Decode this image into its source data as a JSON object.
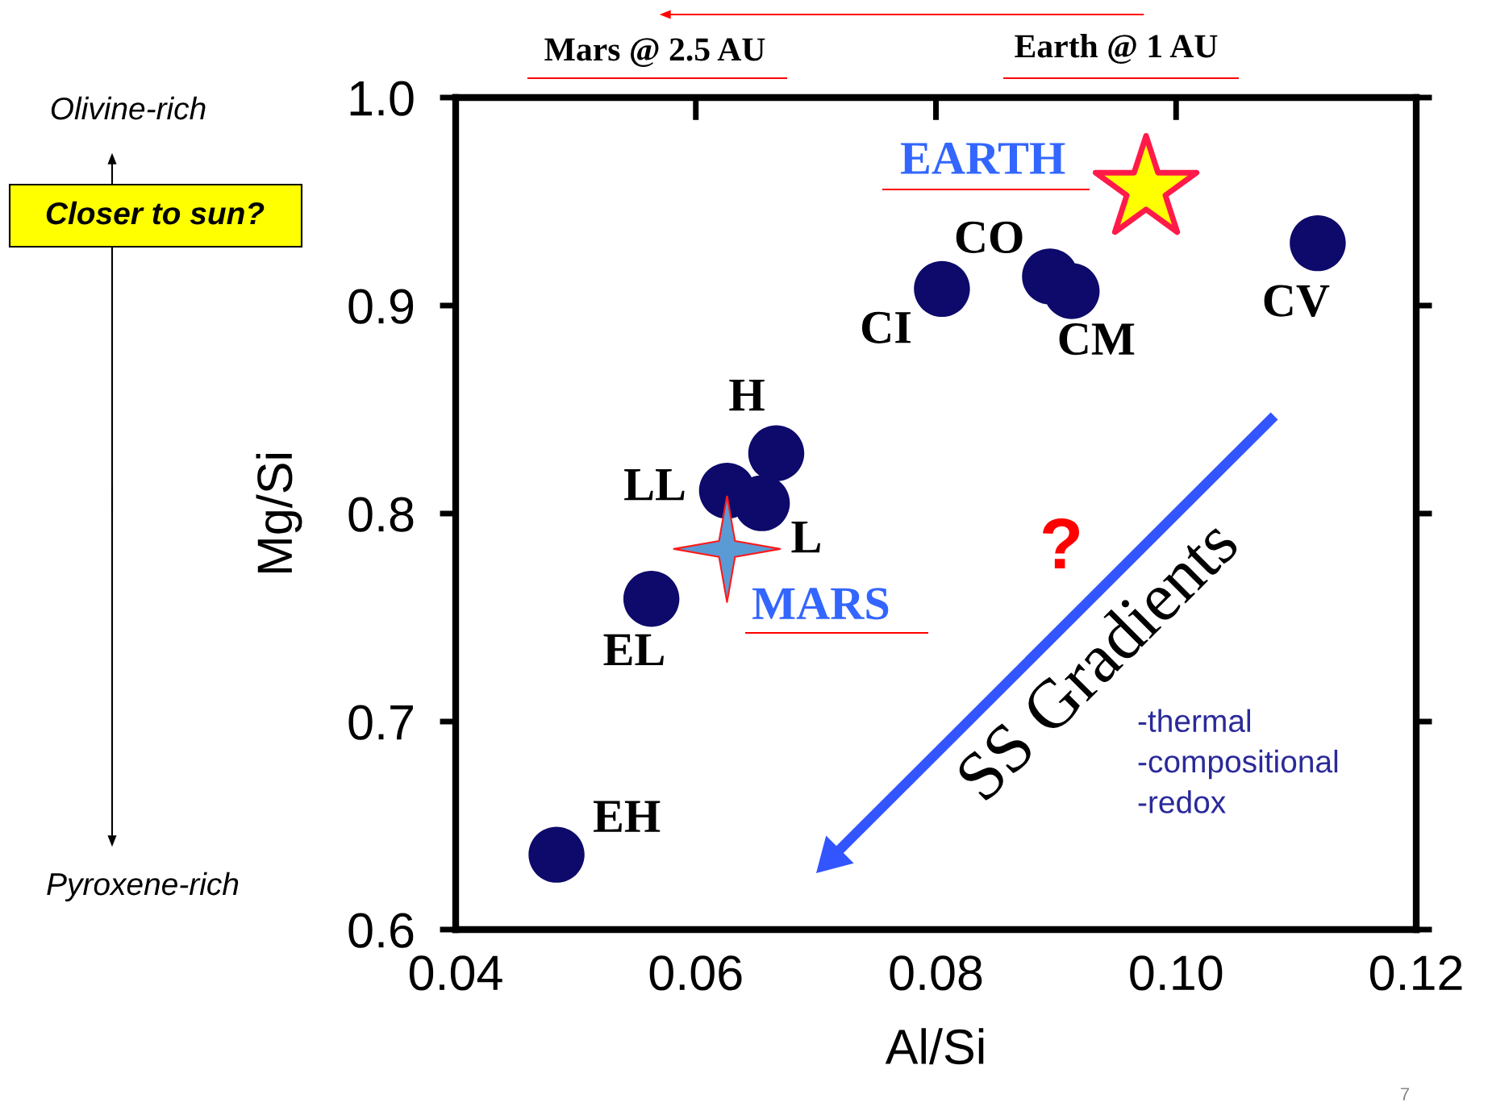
{
  "chart_data": {
    "type": "scatter",
    "xlabel": "Al/Si",
    "ylabel": "Mg/Si",
    "xlim": [
      0.04,
      0.12
    ],
    "ylim": [
      0.6,
      1.0
    ],
    "xticks": [
      0.04,
      0.06,
      0.08,
      {
        "value": 0.1,
        "label": "0.10"
      },
      0.12
    ],
    "yticks": [
      0.6,
      0.7,
      0.8,
      0.9,
      {
        "value": 1.0,
        "label": "1.0"
      }
    ],
    "grid": false,
    "legend": false,
    "series": [
      {
        "marker": "circle",
        "color": "#0d0a6b",
        "x": [
          0.0484,
          0.0563,
          0.0626,
          0.0655,
          0.0667,
          0.0805,
          0.0895,
          0.0913,
          0.1118
        ],
        "values": [
          0.636,
          0.759,
          0.811,
          0.805,
          0.829,
          0.908,
          0.914,
          0.907,
          0.93
        ]
      },
      {
        "name": "EARTH",
        "marker": "star",
        "color": "#ffff00",
        "x": [
          0.0975
        ],
        "values": [
          0.956
        ]
      },
      {
        "name": "MARS",
        "marker": "cross",
        "color": "#5b9bd5",
        "x": [
          0.0626
        ],
        "values": [
          0.783
        ]
      }
    ],
    "annotations": [
      {
        "text": "EH",
        "x": 0.0484,
        "y": 0.636
      },
      {
        "text": "EL",
        "x": 0.0563,
        "y": 0.759
      },
      {
        "text": "LL",
        "x": 0.0626,
        "y": 0.811
      },
      {
        "text": "L",
        "x": 0.0655,
        "y": 0.805
      },
      {
        "text": "H",
        "x": 0.0667,
        "y": 0.829
      },
      {
        "text": "CI",
        "x": 0.0805,
        "y": 0.908
      },
      {
        "text": "CO",
        "x": 0.0895,
        "y": 0.914
      },
      {
        "text": "CM",
        "x": 0.0913,
        "y": 0.907
      },
      {
        "text": "CV",
        "x": 0.1118,
        "y": 0.93
      },
      "Mars @ 2.5 AU",
      "Earth @ 1 AU",
      "Olivine-rich",
      "Closer to sun?",
      "Pyroxene-rich",
      "?",
      "SS Gradients",
      "-thermal\n-compositional\n-redox",
      "7"
    ]
  }
}
